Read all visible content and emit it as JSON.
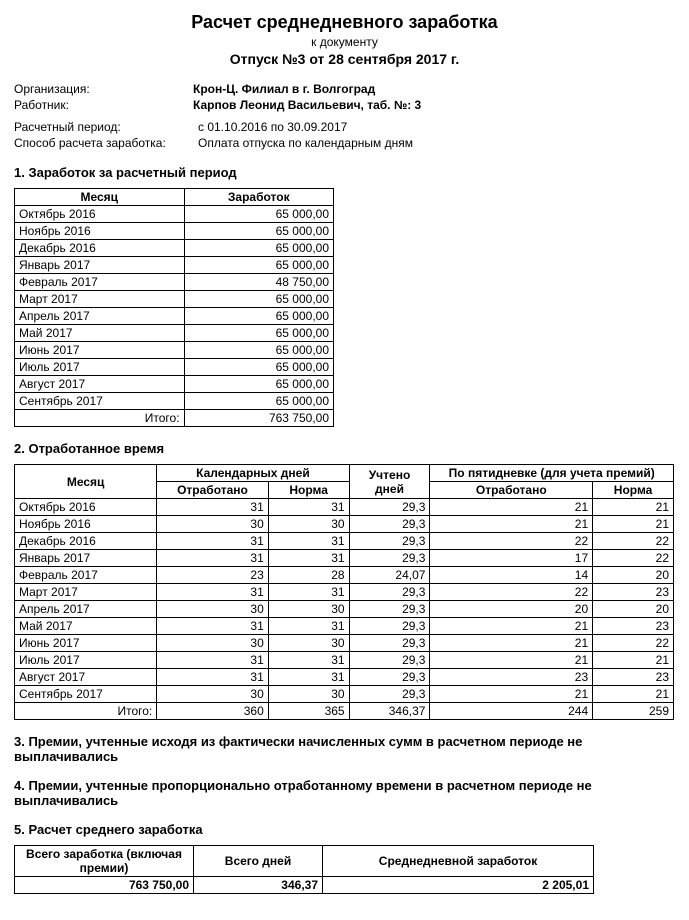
{
  "header": {
    "title": "Расчет среднедневного заработка",
    "subtitle": "к документу",
    "doc_line": "Отпуск №3 от 28 сентября 2017 г.",
    "org_label": "Организация:",
    "org_value": "Крон-Ц. Филиал в г. Волгоград",
    "emp_label": "Работник:",
    "emp_value": "Карпов Леонид Васильевич, таб. №: 3",
    "period_label": "Расчетный период:",
    "period_value": "с 01.10.2016 по 30.09.2017",
    "method_label": "Способ расчета заработка:",
    "method_value": "Оплата отпуска по календарным дням"
  },
  "section1": {
    "heading": "1. Заработок за расчетный период",
    "col_month": "Месяц",
    "col_earn": "Заработок",
    "rows": [
      {
        "m": "Октябрь 2016",
        "v": "65 000,00"
      },
      {
        "m": "Ноябрь 2016",
        "v": "65 000,00"
      },
      {
        "m": "Декабрь 2016",
        "v": "65 000,00"
      },
      {
        "m": "Январь 2017",
        "v": "65 000,00"
      },
      {
        "m": "Февраль 2017",
        "v": "48 750,00"
      },
      {
        "m": "Март 2017",
        "v": "65 000,00"
      },
      {
        "m": "Апрель 2017",
        "v": "65 000,00"
      },
      {
        "m": "Май 2017",
        "v": "65 000,00"
      },
      {
        "m": "Июнь 2017",
        "v": "65 000,00"
      },
      {
        "m": "Июль 2017",
        "v": "65 000,00"
      },
      {
        "m": "Август 2017",
        "v": "65 000,00"
      },
      {
        "m": "Сентябрь 2017",
        "v": "65 000,00"
      }
    ],
    "total_label": "Итого:",
    "total_value": "763 750,00"
  },
  "section2": {
    "heading": "2. Отработанное время",
    "col_month": "Месяц",
    "grp_calendar": "Календарных дней",
    "col_counted": "Учтено дней",
    "grp_five": "По пятидневке (для учета премий)",
    "col_worked": "Отработано",
    "col_norm": "Норма",
    "rows": [
      {
        "m": "Октябрь 2016",
        "c1": "31",
        "c2": "31",
        "c3": "29,3",
        "c4": "21",
        "c5": "21"
      },
      {
        "m": "Ноябрь 2016",
        "c1": "30",
        "c2": "30",
        "c3": "29,3",
        "c4": "21",
        "c5": "21"
      },
      {
        "m": "Декабрь 2016",
        "c1": "31",
        "c2": "31",
        "c3": "29,3",
        "c4": "22",
        "c5": "22"
      },
      {
        "m": "Январь 2017",
        "c1": "31",
        "c2": "31",
        "c3": "29,3",
        "c4": "17",
        "c5": "22"
      },
      {
        "m": "Февраль 2017",
        "c1": "23",
        "c2": "28",
        "c3": "24,07",
        "c4": "14",
        "c5": "20"
      },
      {
        "m": "Март 2017",
        "c1": "31",
        "c2": "31",
        "c3": "29,3",
        "c4": "22",
        "c5": "23"
      },
      {
        "m": "Апрель 2017",
        "c1": "30",
        "c2": "30",
        "c3": "29,3",
        "c4": "20",
        "c5": "20"
      },
      {
        "m": "Май 2017",
        "c1": "31",
        "c2": "31",
        "c3": "29,3",
        "c4": "21",
        "c5": "23"
      },
      {
        "m": "Июнь 2017",
        "c1": "30",
        "c2": "30",
        "c3": "29,3",
        "c4": "21",
        "c5": "22"
      },
      {
        "m": "Июль 2017",
        "c1": "31",
        "c2": "31",
        "c3": "29,3",
        "c4": "21",
        "c5": "21"
      },
      {
        "m": "Август 2017",
        "c1": "31",
        "c2": "31",
        "c3": "29,3",
        "c4": "23",
        "c5": "23"
      },
      {
        "m": "Сентябрь 2017",
        "c1": "30",
        "c2": "30",
        "c3": "29,3",
        "c4": "21",
        "c5": "21"
      }
    ],
    "total_label": "Итого:",
    "totals": {
      "c1": "360",
      "c2": "365",
      "c3": "346,37",
      "c4": "244",
      "c5": "259"
    }
  },
  "section3": "3. Премии, учтенные исходя из фактически начисленных сумм в расчетном периоде не выплачивались",
  "section4": "4. Премии, учтенные пропорционально отработанному времени в расчетном периоде не выплачивались",
  "section5": {
    "heading": "5. Расчет среднего  заработка",
    "col1": "Всего заработка (включая премии)",
    "col2": "Всего дней",
    "col3": "Среднедневной заработок",
    "v1": "763 750,00",
    "v2": "346,37",
    "v3": "2 205,01"
  }
}
